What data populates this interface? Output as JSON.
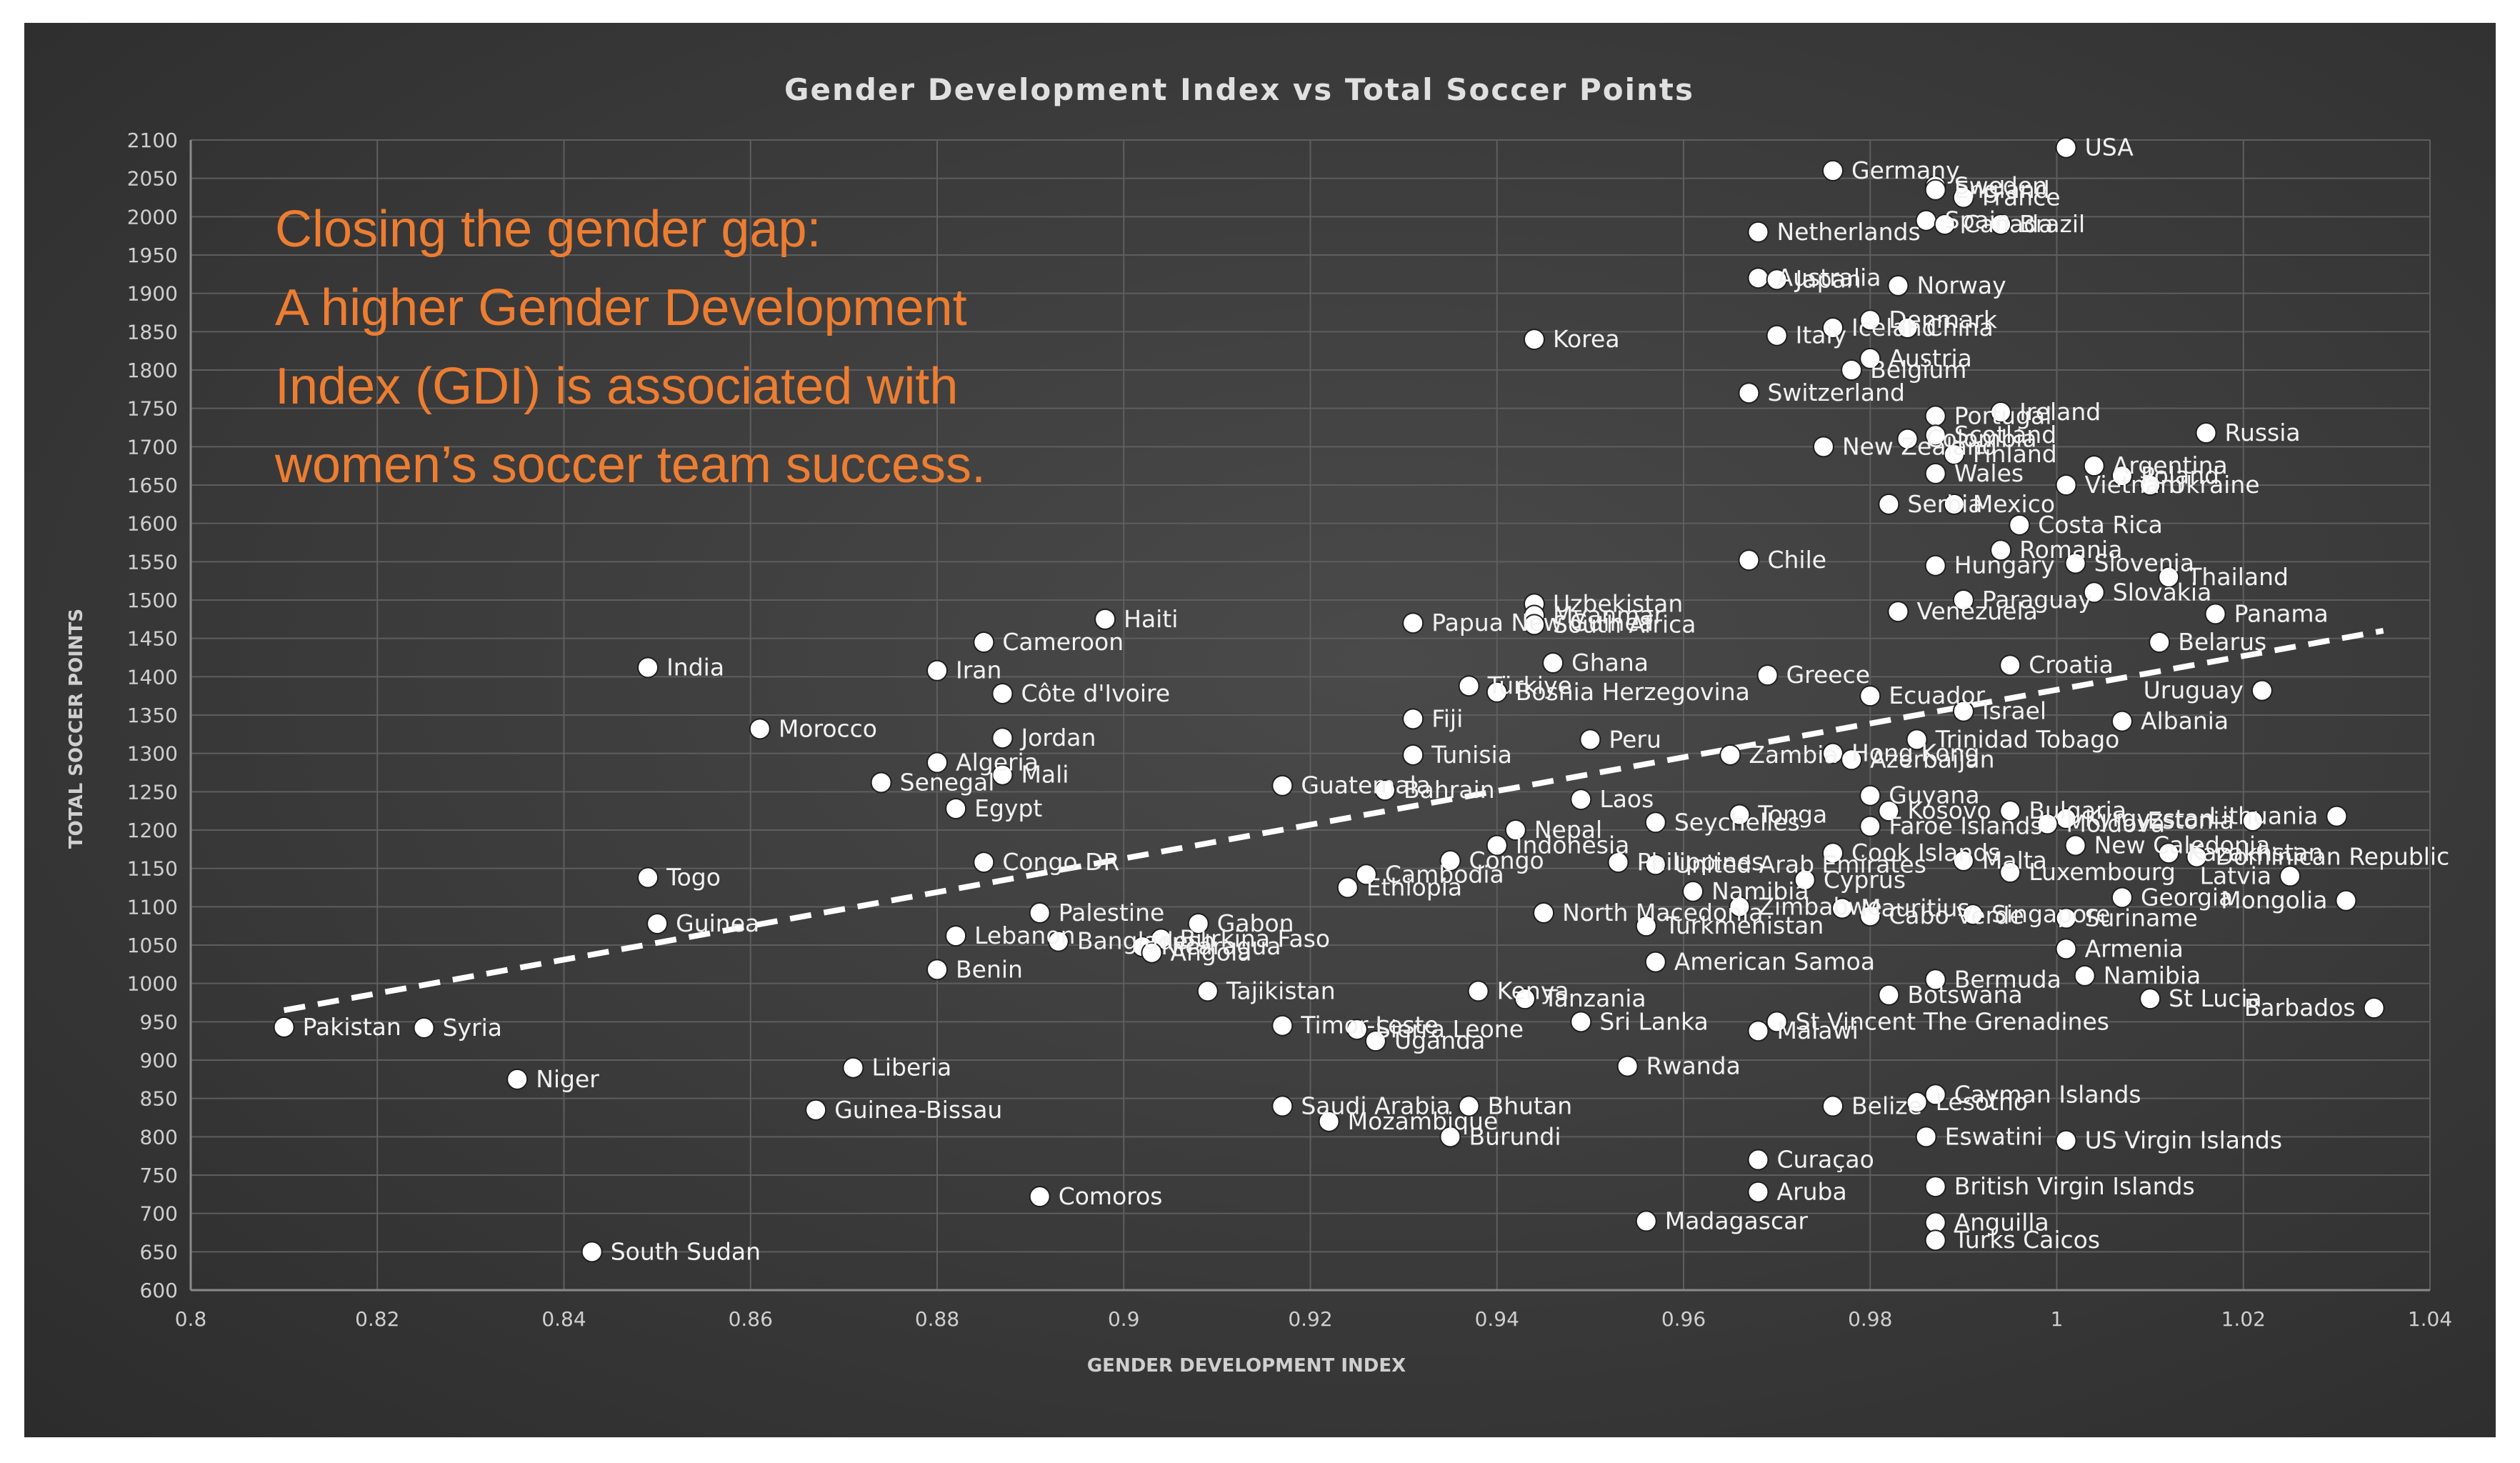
{
  "chart_data": {
    "type": "scatter",
    "title": "Gender Development Index vs Total Soccer Points",
    "xlabel": "GENDER DEVELOPMENT INDEX",
    "ylabel": "TOTAL SOCCER POINTS",
    "xlim": [
      0.8,
      1.04
    ],
    "ylim": [
      600,
      2100
    ],
    "xticks": [
      "0.8",
      "0.82",
      "0.84",
      "0.86",
      "0.88",
      "0.9",
      "0.92",
      "0.94",
      "0.96",
      "0.98",
      "1",
      "1.02",
      "1.04"
    ],
    "yticks": [
      "600",
      "650",
      "700",
      "750",
      "800",
      "850",
      "900",
      "950",
      "1000",
      "1050",
      "1100",
      "1150",
      "1200",
      "1250",
      "1300",
      "1350",
      "1400",
      "1450",
      "1500",
      "1550",
      "1600",
      "1650",
      "1700",
      "1750",
      "1800",
      "1850",
      "1900",
      "1950",
      "2000",
      "2050",
      "2100"
    ],
    "grid": true,
    "trendline": {
      "style": "dashed",
      "color": "#ffffff",
      "x": [
        0.81,
        1.035
      ],
      "y": [
        965,
        1460
      ]
    },
    "annotation": [
      "Closing the gender gap:",
      "A higher Gender Development",
      "Index (GDI) is associated with",
      "women’s soccer team success."
    ],
    "colors": {
      "points": "#ffffff",
      "annotation": "#ed7d31",
      "background": "#3a3a3a"
    },
    "points": [
      {
        "label": "USA",
        "x": 1.001,
        "y": 2090
      },
      {
        "label": "Germany",
        "x": 0.976,
        "y": 2060
      },
      {
        "label": "Sweden",
        "x": 0.987,
        "y": 2040
      },
      {
        "label": "England",
        "x": 0.987,
        "y": 2035
      },
      {
        "label": "France",
        "x": 0.99,
        "y": 2025
      },
      {
        "label": "Spain",
        "x": 0.986,
        "y": 1995
      },
      {
        "label": "Canada",
        "x": 0.988,
        "y": 1990
      },
      {
        "label": "Brazil",
        "x": 0.994,
        "y": 1990
      },
      {
        "label": "Netherlands",
        "x": 0.968,
        "y": 1980
      },
      {
        "label": "Australia",
        "x": 0.968,
        "y": 1920
      },
      {
        "label": "Japan",
        "x": 0.97,
        "y": 1918
      },
      {
        "label": "Norway",
        "x": 0.983,
        "y": 1910
      },
      {
        "label": "Denmark",
        "x": 0.98,
        "y": 1865
      },
      {
        "label": "Iceland",
        "x": 0.976,
        "y": 1855
      },
      {
        "label": "China",
        "x": 0.984,
        "y": 1855
      },
      {
        "label": "Italy",
        "x": 0.97,
        "y": 1845
      },
      {
        "label": "Korea",
        "x": 0.944,
        "y": 1840
      },
      {
        "label": "Austria",
        "x": 0.98,
        "y": 1815
      },
      {
        "label": "Belgium",
        "x": 0.978,
        "y": 1800
      },
      {
        "label": "Switzerland",
        "x": 0.967,
        "y": 1770
      },
      {
        "label": "Portugal",
        "x": 0.987,
        "y": 1740
      },
      {
        "label": "Ireland",
        "x": 0.994,
        "y": 1745
      },
      {
        "label": "Colombia",
        "x": 0.984,
        "y": 1710
      },
      {
        "label": "Scotland",
        "x": 0.987,
        "y": 1715
      },
      {
        "label": "Russia",
        "x": 1.016,
        "y": 1718
      },
      {
        "label": "New Zealand",
        "x": 0.975,
        "y": 1700
      },
      {
        "label": "Finland",
        "x": 0.989,
        "y": 1690
      },
      {
        "label": "Argentina",
        "x": 1.004,
        "y": 1675
      },
      {
        "label": "Wales",
        "x": 0.987,
        "y": 1665
      },
      {
        "label": "Vietnam",
        "x": 1.001,
        "y": 1650
      },
      {
        "label": "Poland",
        "x": 1.007,
        "y": 1662
      },
      {
        "label": "Serbia",
        "x": 0.982,
        "y": 1625
      },
      {
        "label": "Mexico",
        "x": 0.989,
        "y": 1625
      },
      {
        "label": "Ukraine",
        "x": 1.01,
        "y": 1650
      },
      {
        "label": "Costa Rica",
        "x": 0.996,
        "y": 1598
      },
      {
        "label": "Romania",
        "x": 0.994,
        "y": 1565
      },
      {
        "label": "Chile",
        "x": 0.967,
        "y": 1552
      },
      {
        "label": "Slovenia",
        "x": 1.002,
        "y": 1548
      },
      {
        "label": "Hungary",
        "x": 0.987,
        "y": 1545
      },
      {
        "label": "Thailand",
        "x": 1.012,
        "y": 1530
      },
      {
        "label": "Uzbekistan",
        "x": 0.944,
        "y": 1495
      },
      {
        "label": "Paraguay",
        "x": 0.99,
        "y": 1500
      },
      {
        "label": "Slovakia",
        "x": 1.004,
        "y": 1510
      },
      {
        "label": "Myanmar",
        "x": 0.944,
        "y": 1480
      },
      {
        "label": "Haiti",
        "x": 0.898,
        "y": 1475
      },
      {
        "label": "Papua New Guinea",
        "x": 0.931,
        "y": 1470
      },
      {
        "label": "Panama",
        "x": 1.017,
        "y": 1482
      },
      {
        "label": "South Africa",
        "x": 0.944,
        "y": 1468
      },
      {
        "label": "Venezuela",
        "x": 0.983,
        "y": 1485
      },
      {
        "label": "Cameroon",
        "x": 0.885,
        "y": 1445
      },
      {
        "label": "Belarus",
        "x": 1.011,
        "y": 1445
      },
      {
        "label": "India",
        "x": 0.849,
        "y": 1412
      },
      {
        "label": "Iran",
        "x": 0.88,
        "y": 1408
      },
      {
        "label": "Ghana",
        "x": 0.946,
        "y": 1418
      },
      {
        "label": "Croatia",
        "x": 0.995,
        "y": 1415
      },
      {
        "label": "Greece",
        "x": 0.969,
        "y": 1402
      },
      {
        "label": "Côte d'Ivoire",
        "x": 0.887,
        "y": 1378
      },
      {
        "label": "Türkiye",
        "x": 0.937,
        "y": 1388
      },
      {
        "label": "Bosnia Herzegovina",
        "x": 0.94,
        "y": 1380
      },
      {
        "label": "Ecuador",
        "x": 0.98,
        "y": 1375
      },
      {
        "label": "Uruguay",
        "x": 1.022,
        "y": 1382
      },
      {
        "label": "Israel",
        "x": 0.99,
        "y": 1355
      },
      {
        "label": "Fiji",
        "x": 0.931,
        "y": 1345
      },
      {
        "label": "Albania",
        "x": 1.007,
        "y": 1342
      },
      {
        "label": "Morocco",
        "x": 0.861,
        "y": 1332
      },
      {
        "label": "Jordan",
        "x": 0.887,
        "y": 1320
      },
      {
        "label": "Peru",
        "x": 0.95,
        "y": 1318
      },
      {
        "label": "Trinidad Tobago",
        "x": 0.985,
        "y": 1318
      },
      {
        "label": "Zambia",
        "x": 0.965,
        "y": 1298
      },
      {
        "label": "Tunisia",
        "x": 0.931,
        "y": 1298
      },
      {
        "label": "Hong Kong",
        "x": 0.976,
        "y": 1300
      },
      {
        "label": "Azerbaijan",
        "x": 0.978,
        "y": 1292
      },
      {
        "label": "Algeria",
        "x": 0.88,
        "y": 1288
      },
      {
        "label": "Mali",
        "x": 0.887,
        "y": 1272
      },
      {
        "label": "Senegal",
        "x": 0.874,
        "y": 1262
      },
      {
        "label": "Guatemala",
        "x": 0.917,
        "y": 1258
      },
      {
        "label": "Bahrain",
        "x": 0.928,
        "y": 1252
      },
      {
        "label": "Laos",
        "x": 0.949,
        "y": 1240
      },
      {
        "label": "Guyana",
        "x": 0.98,
        "y": 1245
      },
      {
        "label": "Egypt",
        "x": 0.882,
        "y": 1228
      },
      {
        "label": "Tonga",
        "x": 0.966,
        "y": 1220
      },
      {
        "label": "Kosovo",
        "x": 0.982,
        "y": 1225
      },
      {
        "label": "Bulgaria",
        "x": 0.995,
        "y": 1225
      },
      {
        "label": "Estonia",
        "x": 1.021,
        "y": 1212
      },
      {
        "label": "Lithuania",
        "x": 1.03,
        "y": 1218
      },
      {
        "label": "Kyrgyzstan",
        "x": 1.001,
        "y": 1215
      },
      {
        "label": "Faroe Islands",
        "x": 0.98,
        "y": 1205
      },
      {
        "label": "Moldova",
        "x": 0.999,
        "y": 1208
      },
      {
        "label": "Nepal",
        "x": 0.942,
        "y": 1200
      },
      {
        "label": "Seychelles",
        "x": 0.957,
        "y": 1210
      },
      {
        "label": "Indonesia",
        "x": 0.94,
        "y": 1180
      },
      {
        "label": "New Caledonia",
        "x": 1.002,
        "y": 1180
      },
      {
        "label": "Kazakhstan",
        "x": 1.012,
        "y": 1170
      },
      {
        "label": "Dominican Republic",
        "x": 1.015,
        "y": 1165
      },
      {
        "label": "Congo DR",
        "x": 0.885,
        "y": 1158
      },
      {
        "label": "Congo",
        "x": 0.935,
        "y": 1160
      },
      {
        "label": "Cook Islands",
        "x": 0.976,
        "y": 1170
      },
      {
        "label": "United Arab Emirates",
        "x": 0.957,
        "y": 1155
      },
      {
        "label": "Philippines",
        "x": 0.953,
        "y": 1158
      },
      {
        "label": "Malta",
        "x": 0.99,
        "y": 1160
      },
      {
        "label": "Togo",
        "x": 0.849,
        "y": 1138
      },
      {
        "label": "Luxembourg",
        "x": 0.995,
        "y": 1145
      },
      {
        "label": "Latvia",
        "x": 1.025,
        "y": 1140
      },
      {
        "label": "Cambodia",
        "x": 0.926,
        "y": 1142
      },
      {
        "label": "Cyprus",
        "x": 0.973,
        "y": 1135
      },
      {
        "label": "Ethiopia",
        "x": 0.924,
        "y": 1125
      },
      {
        "label": "Namibia",
        "x": 0.961,
        "y": 1120
      },
      {
        "label": "Georgia",
        "x": 1.007,
        "y": 1112
      },
      {
        "label": "Mongolia",
        "x": 1.031,
        "y": 1108
      },
      {
        "label": "Zimbabwe",
        "x": 0.966,
        "y": 1100
      },
      {
        "label": "Mauritius",
        "x": 0.977,
        "y": 1098
      },
      {
        "label": "Palestine",
        "x": 0.891,
        "y": 1092
      },
      {
        "label": "Suriname",
        "x": 1.001,
        "y": 1085
      },
      {
        "label": "Cabo Verde",
        "x": 0.98,
        "y": 1088
      },
      {
        "label": "Singapore",
        "x": 0.991,
        "y": 1090
      },
      {
        "label": "North Macedonia",
        "x": 0.945,
        "y": 1092
      },
      {
        "label": "Guinea",
        "x": 0.85,
        "y": 1078
      },
      {
        "label": "Gabon",
        "x": 0.908,
        "y": 1078
      },
      {
        "label": "Turkmenistan",
        "x": 0.956,
        "y": 1075
      },
      {
        "label": "Lebanon",
        "x": 0.882,
        "y": 1062
      },
      {
        "label": "Burkina Faso",
        "x": 0.904,
        "y": 1058
      },
      {
        "label": "Bangladesh",
        "x": 0.893,
        "y": 1055
      },
      {
        "label": "Nicaragua",
        "x": 0.902,
        "y": 1048
      },
      {
        "label": "Angola",
        "x": 0.903,
        "y": 1040
      },
      {
        "label": "Armenia",
        "x": 1.001,
        "y": 1045
      },
      {
        "label": "American Samoa",
        "x": 0.957,
        "y": 1028
      },
      {
        "label": "Benin",
        "x": 0.88,
        "y": 1018
      },
      {
        "label": "Namibia",
        "x": 1.003,
        "y": 1010
      },
      {
        "label": "Bermuda",
        "x": 0.987,
        "y": 1005
      },
      {
        "label": "Tajikistan",
        "x": 0.909,
        "y": 990
      },
      {
        "label": "Kenya",
        "x": 0.938,
        "y": 990
      },
      {
        "label": "Tanzania",
        "x": 0.943,
        "y": 980
      },
      {
        "label": "Botswana",
        "x": 0.982,
        "y": 985
      },
      {
        "label": "St Lucia",
        "x": 1.01,
        "y": 980
      },
      {
        "label": "Barbados",
        "x": 1.034,
        "y": 968
      },
      {
        "label": "Sri Lanka",
        "x": 0.949,
        "y": 950
      },
      {
        "label": "St Vincent The Grenadines",
        "x": 0.97,
        "y": 950
      },
      {
        "label": "Timor-Leste",
        "x": 0.917,
        "y": 945
      },
      {
        "label": "Sierra Leone",
        "x": 0.925,
        "y": 940
      },
      {
        "label": "Pakistan",
        "x": 0.81,
        "y": 943
      },
      {
        "label": "Syria",
        "x": 0.825,
        "y": 942
      },
      {
        "label": "Malawi",
        "x": 0.968,
        "y": 938
      },
      {
        "label": "Uganda",
        "x": 0.927,
        "y": 925
      },
      {
        "label": "Rwanda",
        "x": 0.954,
        "y": 892
      },
      {
        "label": "Liberia",
        "x": 0.871,
        "y": 890
      },
      {
        "label": "Niger",
        "x": 0.835,
        "y": 875
      },
      {
        "label": "Cayman Islands",
        "x": 0.987,
        "y": 855
      },
      {
        "label": "Lesotho",
        "x": 0.985,
        "y": 845
      },
      {
        "label": "Belize",
        "x": 0.976,
        "y": 840
      },
      {
        "label": "Saudi Arabia",
        "x": 0.917,
        "y": 840
      },
      {
        "label": "Bhutan",
        "x": 0.937,
        "y": 840
      },
      {
        "label": "Guinea-Bissau",
        "x": 0.867,
        "y": 835
      },
      {
        "label": "Mozambique",
        "x": 0.922,
        "y": 820
      },
      {
        "label": "Burundi",
        "x": 0.935,
        "y": 800
      },
      {
        "label": "Eswatini",
        "x": 0.986,
        "y": 800
      },
      {
        "label": "US Virgin Islands",
        "x": 1.001,
        "y": 795
      },
      {
        "label": "Curaçao",
        "x": 0.968,
        "y": 770
      },
      {
        "label": "British Virgin Islands",
        "x": 0.987,
        "y": 735
      },
      {
        "label": "Aruba",
        "x": 0.968,
        "y": 728
      },
      {
        "label": "Comoros",
        "x": 0.891,
        "y": 722
      },
      {
        "label": "Madagascar",
        "x": 0.956,
        "y": 690
      },
      {
        "label": "Anguilla",
        "x": 0.987,
        "y": 688
      },
      {
        "label": "Turks Caicos",
        "x": 0.987,
        "y": 665
      },
      {
        "label": "South Sudan",
        "x": 0.843,
        "y": 650
      }
    ]
  }
}
